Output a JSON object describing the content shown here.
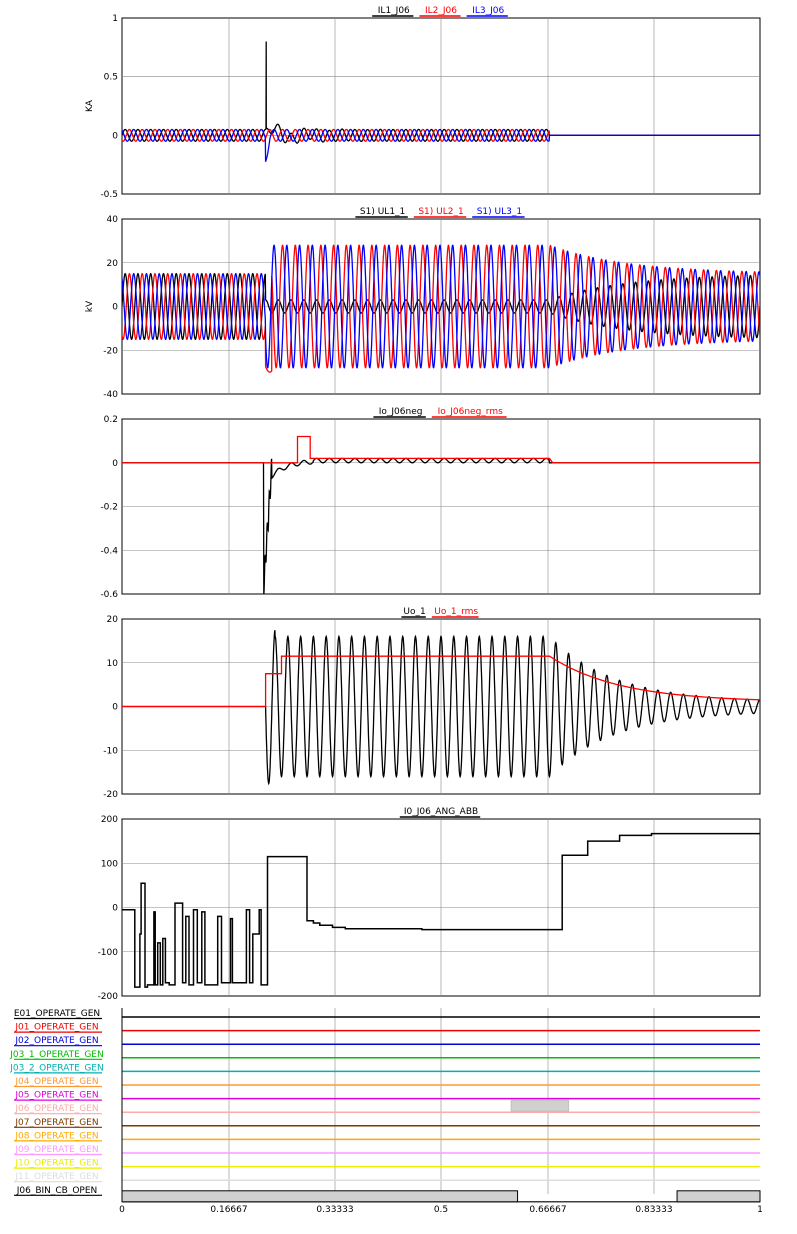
{
  "chart_data": [
    {
      "type": "line",
      "ylabel": "KA",
      "ylim": [
        -0.5,
        1
      ],
      "yticks": [
        "1",
        "0.5",
        "0",
        "-0.5"
      ],
      "grid": true,
      "series": [
        {
          "name": "IL1_J06",
          "color": "#000000"
        },
        {
          "name": "IL2_J06",
          "color": "#ff0000"
        },
        {
          "name": "IL3_J06",
          "color": "#0000ff"
        }
      ],
      "key_points": {
        "fault_spike_peak": 0.8,
        "fault_time": 0.225,
        "trip_time": 0.67
      }
    },
    {
      "type": "line",
      "ylabel": "kV",
      "ylim": [
        -40,
        40
      ],
      "yticks": [
        "40",
        "20",
        "0",
        "-20",
        "-40"
      ],
      "grid": true,
      "series": [
        {
          "name": "S1) UL1_1",
          "color": "#000000"
        },
        {
          "name": "S1) UL2_1",
          "color": "#ff0000"
        },
        {
          "name": "S1) UL3_1",
          "color": "#0000ff"
        }
      ],
      "key_points": {
        "pre_fault_amplitude": 15,
        "fault_amplitude": 28
      }
    },
    {
      "type": "line",
      "ylim": [
        -0.6,
        0.2
      ],
      "yticks": [
        "0.2",
        "0",
        "-0.2",
        "-0.4",
        "-0.6"
      ],
      "grid": true,
      "series": [
        {
          "name": "Io_J06neg",
          "color": "#000000"
        },
        {
          "name": "Io_J06neg_rms",
          "color": "#ff0000"
        }
      ],
      "key_points": {
        "spike_min": -0.57,
        "rms_bump": 0.12
      }
    },
    {
      "type": "line",
      "ylim": [
        -20,
        20
      ],
      "yticks": [
        "20",
        "10",
        "0",
        "-10",
        "-20"
      ],
      "grid": true,
      "series": [
        {
          "name": "Uo_1",
          "color": "#000000"
        },
        {
          "name": "Uo_1_rms",
          "color": "#ff0000"
        }
      ],
      "key_points": {
        "amplitude": 16,
        "rms_level": 11.5
      }
    },
    {
      "type": "line",
      "ylim": [
        -200,
        200
      ],
      "yticks": [
        "200",
        "100",
        "0",
        "-100",
        "-200"
      ],
      "grid": true,
      "series": [
        {
          "name": "I0_J06_ANG_ABB",
          "color": "#000000",
          "x": [
            0,
            0.02,
            0.02,
            0.028,
            0.028,
            0.03,
            0.03,
            0.036,
            0.036,
            0.038,
            0.038,
            0.04,
            0.04,
            0.05,
            0.05,
            0.052,
            0.052,
            0.056,
            0.056,
            0.06,
            0.06,
            0.064,
            0.064,
            0.068,
            0.068,
            0.074,
            0.074,
            0.078,
            0.078,
            0.083,
            0.083,
            0.087,
            0.087,
            0.095,
            0.095,
            0.1,
            0.1,
            0.105,
            0.105,
            0.112,
            0.112,
            0.118,
            0.118,
            0.125,
            0.125,
            0.13,
            0.13,
            0.15,
            0.15,
            0.156,
            0.156,
            0.17,
            0.17,
            0.173,
            0.173,
            0.195,
            0.195,
            0.2,
            0.2,
            0.205,
            0.205,
            0.215,
            0.215,
            0.218,
            0.218,
            0.228,
            0.228,
            0.29,
            0.29,
            0.3,
            0.3,
            0.31,
            0.31,
            0.33,
            0.33,
            0.35,
            0.35,
            0.4,
            0.4,
            0.47,
            0.47,
            0.69,
            0.69,
            0.693,
            0.693,
            0.73,
            0.73,
            0.78,
            0.78,
            0.83,
            0.83,
            1
          ],
          "y": [
            -5,
            -5,
            -180,
            -180,
            -60,
            -60,
            55,
            55,
            -180,
            -180,
            -180,
            -180,
            -175,
            -175,
            -10,
            -10,
            -175,
            -175,
            -80,
            -80,
            -175,
            -175,
            -70,
            -70,
            -170,
            -170,
            -175,
            -175,
            -175,
            -175,
            10,
            10,
            10,
            10,
            -170,
            -170,
            -20,
            -20,
            -175,
            -175,
            -5,
            -5,
            -170,
            -170,
            -10,
            -10,
            -175,
            -175,
            -20,
            -20,
            -170,
            -170,
            -25,
            -25,
            -170,
            -170,
            -5,
            -5,
            -170,
            -170,
            -60,
            -60,
            -5,
            -5,
            -175,
            -175,
            115,
            115,
            -30,
            -30,
            -35,
            -35,
            -40,
            -40,
            -45,
            -45,
            -48,
            -48,
            -48,
            -48,
            -50,
            -50,
            118,
            118,
            118,
            118,
            150,
            150,
            163,
            163,
            167,
            167
          ]
        }
      ]
    },
    {
      "type": "table",
      "signals": [
        {
          "label": "E01_OPERATE_GEN",
          "color": "#000000",
          "active": []
        },
        {
          "label": "J01_OPERATE_GEN",
          "color": "#ee0000",
          "active": []
        },
        {
          "label": "J02_OPERATE_GEN",
          "color": "#0000dd",
          "active": []
        },
        {
          "label": "J03_1_OPERATE_GEN",
          "color": "#00bb00",
          "active": []
        },
        {
          "label": "J03_2_OPERATE_GEN",
          "color": "#00b0b0",
          "active": []
        },
        {
          "label": "J04_OPERATE_GEN",
          "color": "#ff9933",
          "active": []
        },
        {
          "label": "J05_OPERATE_GEN",
          "color": "#dd00dd",
          "active": []
        },
        {
          "label": "J06_OPERATE_GEN",
          "color": "#ffaaaa",
          "active": [
            [
              0.61,
              0.7
            ]
          ]
        },
        {
          "label": "J07_OPERATE_GEN",
          "color": "#7a3b00",
          "active": []
        },
        {
          "label": "J08_OPERATE_GEN",
          "color": "#ffaa00",
          "active": []
        },
        {
          "label": "J09_OPERATE_GEN",
          "color": "#ff99ff",
          "active": []
        },
        {
          "label": "J10_OPERATE_GEN",
          "color": "#eeee00",
          "active": []
        },
        {
          "label": "J11_OPERATE_GEN",
          "color": "#dddddd",
          "active": []
        },
        {
          "label": "J06_BIN_CB_OPEN",
          "color": "#000000",
          "active": [
            [
              0,
              0.62
            ],
            [
              0.87,
              1
            ]
          ]
        }
      ]
    }
  ],
  "x_axis": {
    "xlim": [
      0,
      1
    ],
    "ticks": [
      "0",
      "0.16667",
      "0.33333",
      "0.5",
      "0.66667",
      "0.83333",
      "1"
    ]
  }
}
